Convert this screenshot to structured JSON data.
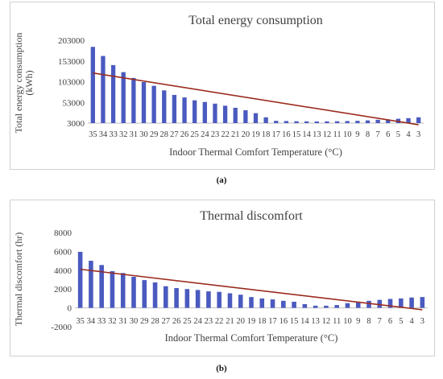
{
  "chart_data": [
    {
      "type": "bar",
      "title": "Total energy consumption",
      "xlabel": "Indoor Thermal Comfort Temperature (°C)",
      "ylabel_lines": [
        "Total energy consumption",
        "(kWh)"
      ],
      "yticks": [
        203000,
        153000,
        103000,
        53000,
        3000
      ],
      "ylim": [
        3000,
        203000
      ],
      "categories": [
        "35",
        "34",
        "33",
        "32",
        "31",
        "30",
        "29",
        "28",
        "27",
        "26",
        "25",
        "24",
        "23",
        "22",
        "21",
        "20",
        "19",
        "18",
        "17",
        "16",
        "15",
        "14",
        "13",
        "12",
        "11",
        "10",
        "9",
        "8",
        "7",
        "6",
        "5",
        "4",
        "3"
      ],
      "values": [
        187000,
        165000,
        143000,
        126000,
        112000,
        102000,
        93000,
        82000,
        71000,
        65000,
        58000,
        54000,
        50000,
        45000,
        40000,
        34000,
        27000,
        17000,
        8500,
        8000,
        7500,
        7200,
        7000,
        7200,
        7500,
        8000,
        8500,
        9500,
        11000,
        12000,
        13500,
        15000,
        17000
      ],
      "trendline": [
        124000,
        -1000
      ],
      "bar_color": "#4a5abf",
      "trend_color": "#9b2b1e",
      "label": "(a)"
    },
    {
      "type": "bar",
      "title": "Thermal discomfort",
      "xlabel": "Indoor Thermal Comfort Temperature (°C)",
      "ylabel_lines": [
        "Thermal discomfort (hr)"
      ],
      "yticks": [
        8000,
        6000,
        4000,
        2000,
        0,
        -2000
      ],
      "ylim": [
        -2000,
        8000
      ],
      "categories": [
        "35",
        "34",
        "33",
        "32",
        "31",
        "30",
        "29",
        "28",
        "27",
        "26",
        "25",
        "24",
        "23",
        "22",
        "21",
        "20",
        "19",
        "18",
        "17",
        "16",
        "15",
        "14",
        "13",
        "12",
        "11",
        "10",
        "9",
        "8",
        "7",
        "6",
        "5",
        "4",
        "3"
      ],
      "values": [
        5950,
        5000,
        4550,
        3900,
        3700,
        3300,
        2950,
        2700,
        2300,
        2100,
        2000,
        1900,
        1750,
        1700,
        1550,
        1400,
        1150,
        1000,
        900,
        750,
        650,
        400,
        230,
        230,
        300,
        500,
        600,
        750,
        850,
        950,
        1000,
        1100,
        1150
      ],
      "trendline": [
        4100,
        -200
      ],
      "bar_color": "#4a5abf",
      "trend_color": "#9b2b1e",
      "label": "(b)"
    }
  ]
}
